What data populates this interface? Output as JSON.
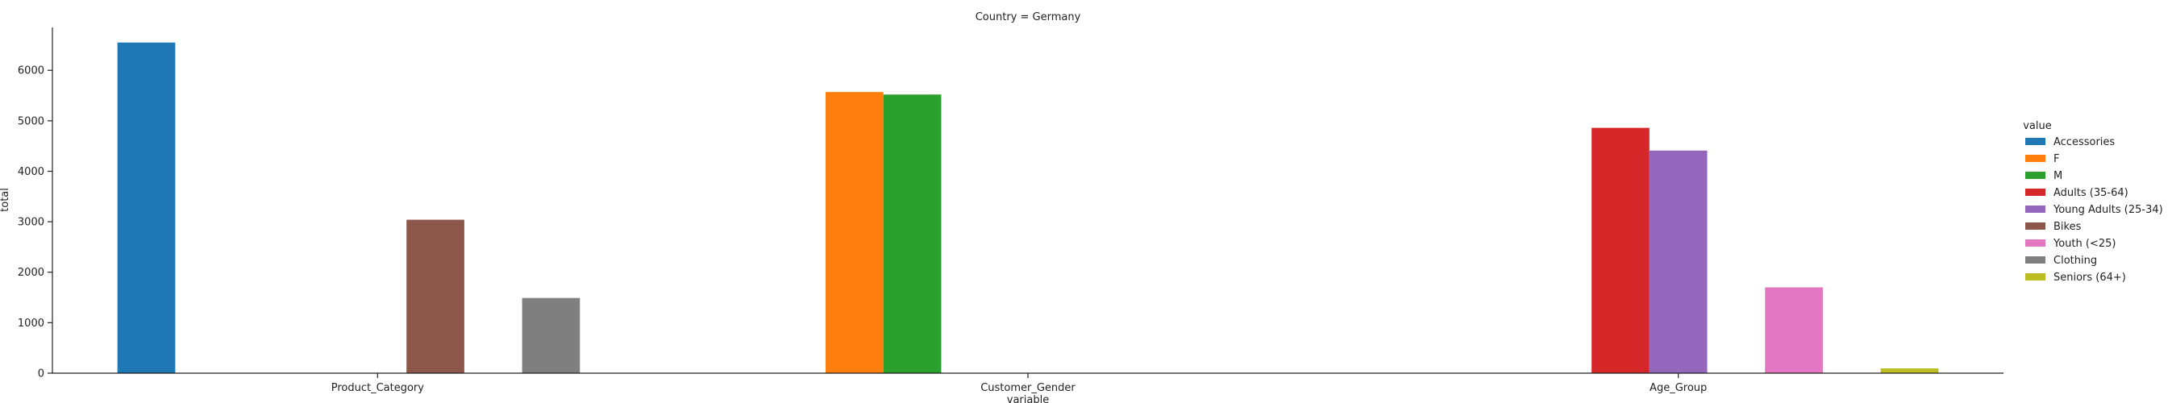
{
  "chart_data": {
    "type": "bar",
    "title": "Country = Germany",
    "xlabel": "variable",
    "ylabel": "total",
    "ylim": [
      0,
      6850
    ],
    "yticks": [
      0,
      1000,
      2000,
      3000,
      4000,
      5000,
      6000
    ],
    "categories": [
      "Product_Category",
      "Customer_Gender",
      "Age_Group"
    ],
    "legend": {
      "title": "value",
      "placement": "right",
      "entries": [
        {
          "name": "Accessories",
          "color": "#1f77b4"
        },
        {
          "name": "F",
          "color": "#ff7f0e"
        },
        {
          "name": "M",
          "color": "#2ca02c"
        },
        {
          "name": "Adults (35-64)",
          "color": "#d62728"
        },
        {
          "name": "Young Adults (25-34)",
          "color": "#9467bd"
        },
        {
          "name": "Bikes",
          "color": "#8c564b"
        },
        {
          "name": "Youth (<25)",
          "color": "#e377c2"
        },
        {
          "name": "Clothing",
          "color": "#7f7f7f"
        },
        {
          "name": "Seniors (64+)",
          "color": "#bcbd22"
        }
      ]
    },
    "series": [
      {
        "name": "Accessories",
        "values": [
          6550,
          null,
          null
        ]
      },
      {
        "name": "F",
        "values": [
          null,
          5570,
          null
        ]
      },
      {
        "name": "M",
        "values": [
          null,
          5520,
          null
        ]
      },
      {
        "name": "Adults (35-64)",
        "values": [
          null,
          null,
          4860
        ]
      },
      {
        "name": "Young Adults (25-34)",
        "values": [
          null,
          null,
          4410
        ]
      },
      {
        "name": "Bikes",
        "values": [
          3040,
          null,
          null
        ]
      },
      {
        "name": "Youth (<25)",
        "values": [
          null,
          null,
          1700
        ]
      },
      {
        "name": "Clothing",
        "values": [
          1490,
          null,
          null
        ]
      },
      {
        "name": "Seniors (64+)",
        "values": [
          null,
          null,
          95
        ]
      }
    ],
    "grid": false
  }
}
